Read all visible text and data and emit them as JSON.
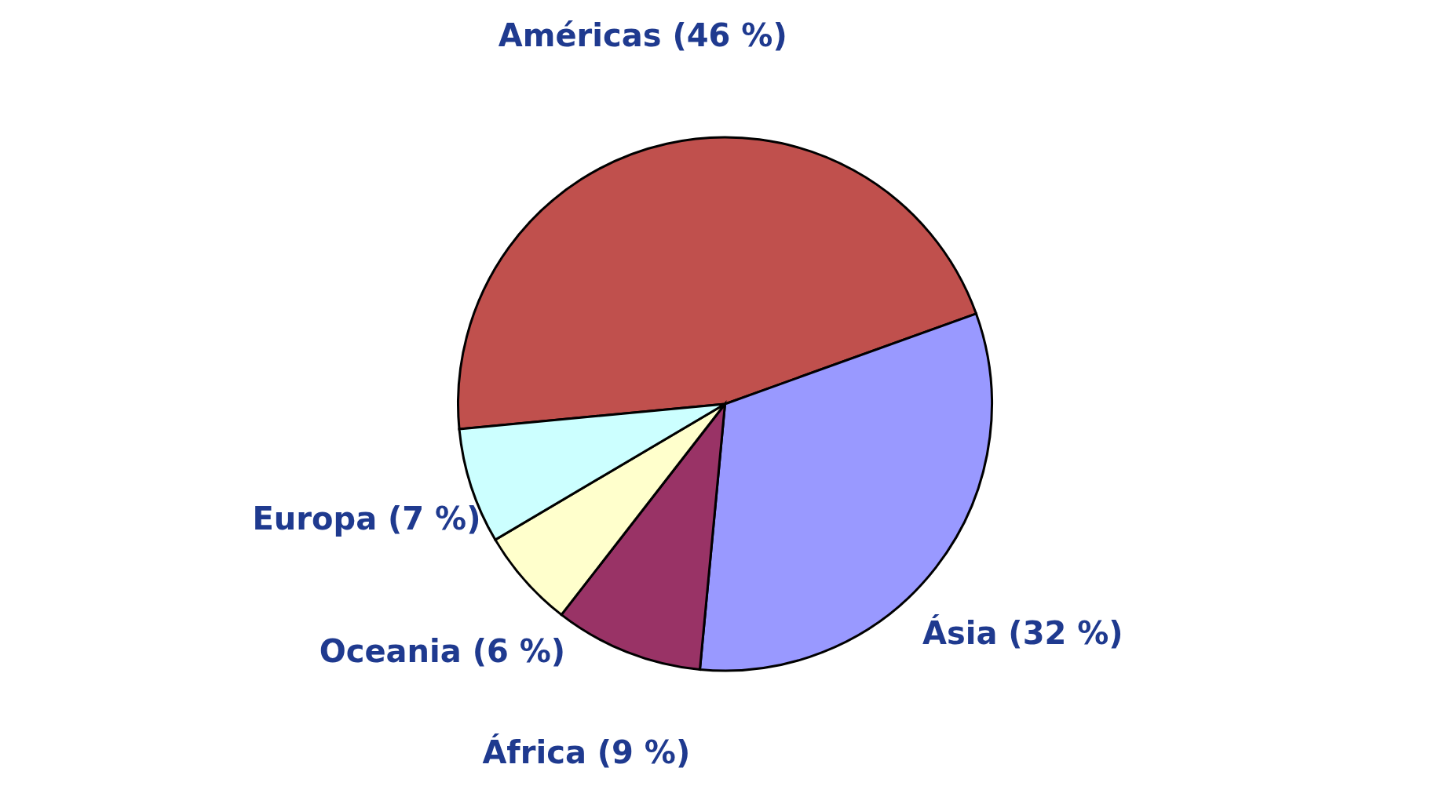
{
  "chart_data": {
    "type": "pie",
    "categories": [
      "Américas",
      "Ásia",
      "África",
      "Oceania",
      "Europa"
    ],
    "values": [
      46,
      32,
      9,
      6,
      7
    ],
    "colors": [
      "#c0504d",
      "#9999ff",
      "#993366",
      "#ffffcc",
      "#ccffff"
    ],
    "value_labels": [
      "(46 %)",
      "(32 %)",
      "(9 %)",
      "(6 %)",
      "(7 %)"
    ],
    "legend": false
  }
}
